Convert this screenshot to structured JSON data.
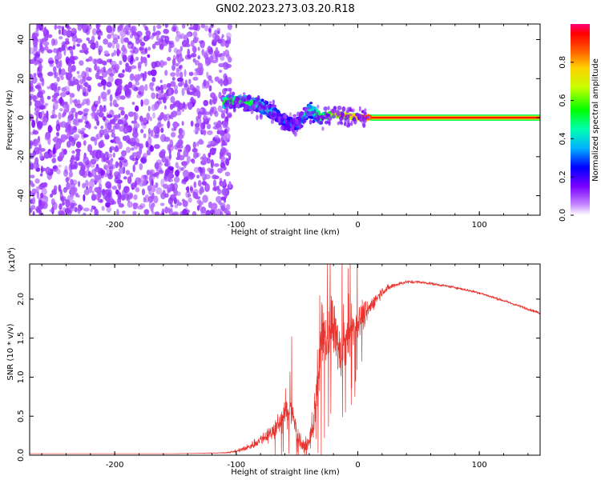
{
  "title": "GN02.2023.273.03.20.R18",
  "colors": {
    "snr_line": "#e8332e",
    "spectrogram_hot": "#d40000",
    "spectrogram_noise": "#7a1fe8",
    "axis": "#000000"
  },
  "chart_data": [
    {
      "type": "heatmap",
      "xlabel": "Height of straight line (km)",
      "ylabel": "Frequency (Hz)",
      "xlim": [
        -270,
        150
      ],
      "ylim": [
        -50,
        48
      ],
      "xticks": [
        -200,
        -100,
        0,
        100
      ],
      "yticks": [
        -40,
        -20,
        0,
        20,
        40
      ],
      "colorbar": {
        "label": "Normalized spectral amplitude",
        "range": [
          0,
          1
        ],
        "ticks": [
          0.0,
          0.2,
          0.4,
          0.6,
          0.8
        ],
        "colormap": "rainbow"
      },
      "regions": [
        {
          "x_range": [
            -270,
            -105
          ],
          "freq_range": [
            -50,
            48
          ],
          "amplitude": 0.1
        },
        {
          "x_range": [
            -110,
            -30
          ],
          "freq_range": [
            -8,
            12
          ],
          "amplitude": 0.5
        },
        {
          "x_range": [
            -30,
            10
          ],
          "freq_range": [
            -2,
            3
          ],
          "amplitude": 0.8
        },
        {
          "x_range": [
            10,
            150
          ],
          "freq_range": [
            -1,
            1
          ],
          "amplitude": 0.95
        }
      ],
      "ridge": {
        "x": [
          -110,
          -100,
          -90,
          -80,
          -70,
          -60,
          -50,
          -40,
          -30,
          -20,
          -10,
          0,
          10,
          50,
          100,
          150
        ],
        "freq": [
          8,
          8,
          8,
          6,
          3,
          -2,
          -4,
          4,
          0,
          2,
          1,
          0,
          0,
          0,
          0,
          0
        ],
        "amplitude": [
          0.55,
          0.6,
          0.55,
          0.5,
          0.4,
          0.35,
          0.35,
          0.45,
          0.65,
          0.75,
          0.8,
          0.85,
          0.95,
          1.0,
          1.0,
          1.0
        ]
      }
    },
    {
      "type": "line",
      "xlabel": "Height of straight line (km)",
      "ylabel": "SNR (10 * v/v)",
      "y_multiplier": "(x10",
      "y_multiplier_exp": "4",
      "y_multiplier_close": ")",
      "xlim": [
        -270,
        150
      ],
      "ylim": [
        0,
        2.45
      ],
      "xticks": [
        -200,
        -100,
        0,
        100
      ],
      "yticks": [
        0.0,
        0.5,
        1.0,
        1.5,
        2.0
      ],
      "series": [
        {
          "x": [
            -270,
            -200,
            -150,
            -110,
            -100,
            -90,
            -80,
            -70,
            -60,
            -55,
            -50,
            -45,
            -40,
            -35,
            -30,
            -25,
            -20,
            -15,
            -10,
            -5,
            0,
            10,
            20,
            30,
            40,
            50,
            60,
            80,
            100,
            120,
            150
          ],
          "y": [
            0.02,
            0.02,
            0.02,
            0.03,
            0.05,
            0.1,
            0.2,
            0.3,
            0.5,
            0.6,
            0.3,
            0.1,
            0.15,
            0.6,
            1.5,
            1.4,
            1.7,
            1.3,
            1.4,
            1.6,
            1.7,
            1.9,
            2.1,
            2.18,
            2.22,
            2.22,
            2.2,
            2.15,
            2.08,
            1.98,
            1.82
          ],
          "noise": [
            0,
            0,
            0,
            0.01,
            0.03,
            0.08,
            0.12,
            0.2,
            0.3,
            0.35,
            0.25,
            0.15,
            0.25,
            0.5,
            0.75,
            0.7,
            0.7,
            0.6,
            0.5,
            0.5,
            0.4,
            0.2,
            0.1,
            0.05,
            0.04,
            0.03,
            0.03,
            0.03,
            0.03,
            0.03,
            0.03
          ]
        }
      ]
    }
  ]
}
